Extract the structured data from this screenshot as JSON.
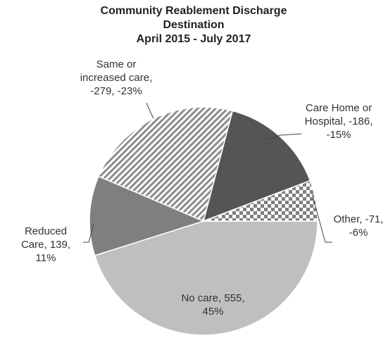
{
  "chart_data": {
    "type": "pie",
    "title": "Community Reablement Discharge Destination",
    "subtitle": "April 2015 - July 2017",
    "values": [
      555,
      139,
      -279,
      -186,
      -71
    ],
    "value_labels": [
      "No care, 555, 45%",
      "Reduced Care, 139, 11%",
      "Same or increased care, -279, -23%",
      "Care Home or Hospital, -186, -15%",
      "Other, -71, -6%"
    ],
    "colors": [
      "#bfbfbf",
      "#7f7f7f",
      "#8c8c8c",
      "#555555",
      "#7f7f7f"
    ],
    "fill_patterns": [
      "solid",
      "solid",
      "diagonal",
      "solid",
      "checker"
    ]
  }
}
